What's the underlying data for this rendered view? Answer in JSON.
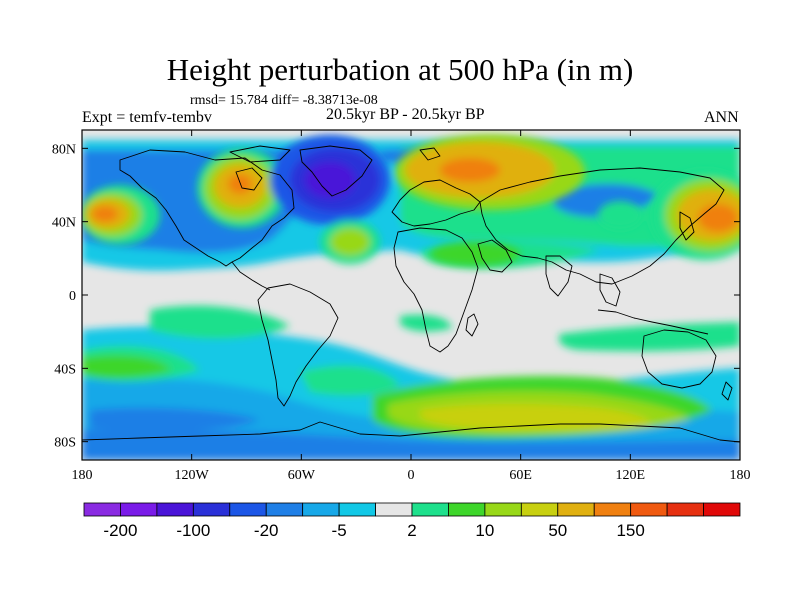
{
  "title": "Height perturbation at 500 hPa (in m)",
  "stats": "rmsd= 15.784 diff= -8.38713e-08",
  "experiment": "Expt = temfv-tembv",
  "period": "20.5kyr BP - 20.5kyr BP",
  "season": "ANN",
  "map": {
    "projection": "cylindrical-equidistant",
    "lon_range": [
      -180,
      180
    ],
    "lat_range": [
      -90,
      90
    ],
    "x_ticks": [
      {
        "value": -180,
        "label": "180"
      },
      {
        "value": -120,
        "label": "120W"
      },
      {
        "value": -60,
        "label": "60W"
      },
      {
        "value": 0,
        "label": "0"
      },
      {
        "value": 60,
        "label": "60E"
      },
      {
        "value": 120,
        "label": "120E"
      },
      {
        "value": 180,
        "label": "180"
      }
    ],
    "y_ticks": [
      {
        "value": 80,
        "label": "80N"
      },
      {
        "value": 40,
        "label": "40N"
      },
      {
        "value": 0,
        "label": "0"
      },
      {
        "value": -40,
        "label": "40S"
      },
      {
        "value": -80,
        "label": "80S"
      }
    ],
    "background_color": "#e6e6e6"
  },
  "colorbar": {
    "labels": [
      {
        "after_box": 1,
        "label": "-200"
      },
      {
        "after_box": 3,
        "label": "-100"
      },
      {
        "after_box": 5,
        "label": "-20"
      },
      {
        "after_box": 7,
        "label": "-5"
      },
      {
        "after_box": 9,
        "label": "2"
      },
      {
        "after_box": 11,
        "label": "10"
      },
      {
        "after_box": 13,
        "label": "50"
      },
      {
        "after_box": 15,
        "label": "150"
      }
    ],
    "colors": [
      "#8a2be2",
      "#7a1be8",
      "#4a14d8",
      "#2a30d8",
      "#1c56e6",
      "#1f7fe6",
      "#17a8e8",
      "#12c8e6",
      "#e6e6e6",
      "#1ee08c",
      "#3ed62a",
      "#98d818",
      "#c8d010",
      "#e0b010",
      "#f08010",
      "#f05a10",
      "#e63010",
      "#e00808"
    ]
  },
  "contour_fields": [
    {
      "level": "5-20",
      "color": "#1c56e6",
      "lon": -155,
      "lat": 50,
      "rx": 20,
      "ry": 20
    },
    {
      "level": "20-50",
      "color": "#e0b010",
      "lon": -110,
      "lat": 58,
      "rx": 20,
      "ry": 18
    },
    {
      "level": "-50",
      "color": "#2a30d8",
      "lon": -40,
      "lat": 60,
      "rx": 22,
      "ry": 20
    },
    {
      "level": "20-50",
      "color": "#e0b010",
      "lon": 40,
      "lat": 70,
      "rx": 42,
      "ry": 15
    },
    {
      "level": "20-50",
      "color": "#e0b010",
      "lon": 140,
      "lat": 50,
      "rx": 25,
      "ry": 17
    },
    {
      "level": "20-50",
      "color": "#e0b010",
      "lon": 170,
      "lat": 40,
      "rx": 18,
      "ry": 14
    },
    {
      "level": "5-20",
      "color": "#98d818",
      "lon": 60,
      "lat": -65,
      "rx": 70,
      "ry": 20
    }
  ]
}
